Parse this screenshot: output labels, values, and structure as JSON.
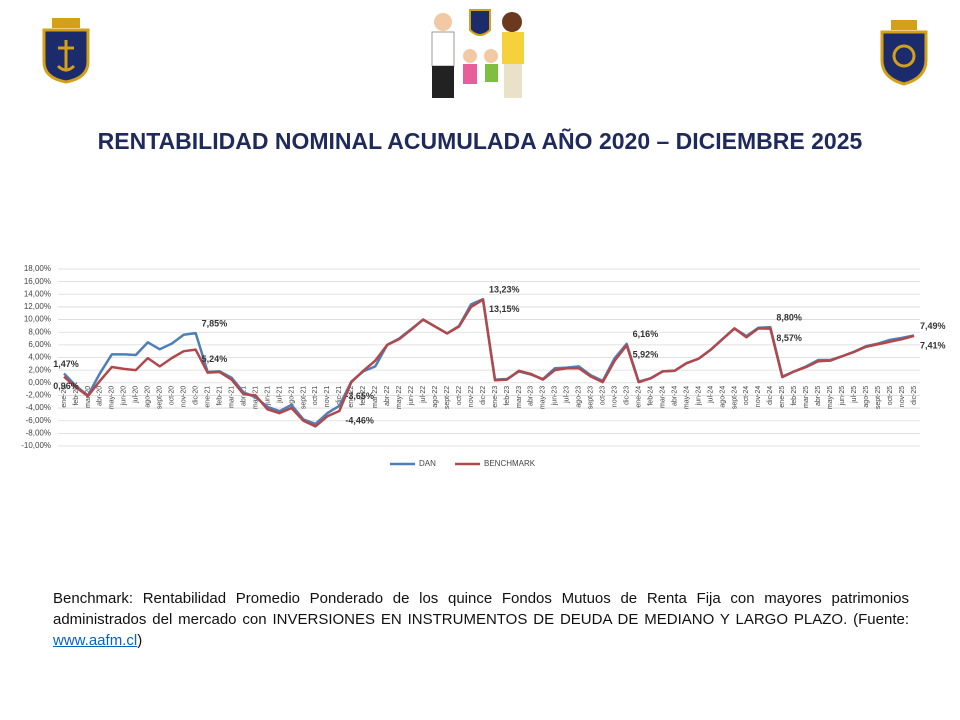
{
  "header": {
    "title": "RENTABILIDAD NOMINAL ACUMULADA AÑO 2020 – DICIEMBRE 2025"
  },
  "chart_data": {
    "type": "line",
    "categories": [
      "ene-20",
      "feb-20",
      "mar-20",
      "abr-20",
      "may-20",
      "jun-20",
      "jul-20",
      "ago-20",
      "sept-20",
      "oct-20",
      "nov-20",
      "dic-20",
      "ene-21",
      "feb-21",
      "mar-21",
      "abr-21",
      "may-21",
      "jun-21",
      "jul-21",
      "ago-21",
      "sept-21",
      "oct-21",
      "nov-21",
      "dic-21",
      "ene-22",
      "feb-22",
      "mar-22",
      "abr-22",
      "may-22",
      "jun-22",
      "jul-22",
      "ago-22",
      "sept-22",
      "oct-22",
      "nov-22",
      "dic-22",
      "ene-23",
      "feb-23",
      "mar-23",
      "abr-23",
      "may-23",
      "jun-23",
      "jul-23",
      "ago-23",
      "sept-23",
      "oct-23",
      "nov-23",
      "dic-23",
      "ene-24",
      "feb-24",
      "mar-24",
      "abr-24",
      "may-24",
      "jun-24",
      "jul-24",
      "ago-24",
      "sept-24",
      "oct-24",
      "nov-24",
      "dic-24",
      "ene-25",
      "feb-25",
      "mar-25",
      "abr-25",
      "may-25",
      "jun-25",
      "jul-25",
      "ago-25",
      "sept-25",
      "oct-25",
      "nov-25",
      "dic-25"
    ],
    "series": [
      {
        "name": "DAN",
        "color": "#4f7fb8",
        "values": [
          1.47,
          -0.5,
          -2.0,
          1.5,
          4.5,
          4.5,
          4.4,
          6.4,
          5.3,
          6.2,
          7.6,
          7.85,
          1.7,
          1.8,
          0.8,
          -1.5,
          -2.3,
          -3.8,
          -4.5,
          -3.5,
          -5.8,
          -6.5,
          -4.8,
          -3.65,
          0.2,
          1.8,
          2.6,
          6.0,
          7.0,
          8.5,
          10.0,
          8.9,
          7.8,
          9.0,
          12.4,
          13.23,
          0.5,
          0.6,
          1.8,
          1.3,
          0.6,
          2.3,
          2.4,
          2.6,
          1.2,
          0.3,
          3.9,
          6.16,
          0.2,
          0.7,
          1.8,
          1.9,
          3.1,
          3.8,
          5.2,
          6.9,
          8.6,
          7.4,
          8.7,
          8.8,
          1.0,
          1.8,
          2.6,
          3.6,
          3.6,
          4.2,
          4.9,
          5.8,
          6.2,
          6.8,
          7.1,
          7.49
        ],
        "value_labels": [
          "1,47%",
          null,
          null,
          null,
          null,
          null,
          null,
          null,
          null,
          null,
          null,
          "7,85%",
          null,
          null,
          null,
          null,
          null,
          null,
          null,
          null,
          null,
          null,
          null,
          "-3,65%",
          null,
          null,
          null,
          null,
          null,
          null,
          null,
          null,
          null,
          null,
          null,
          "13,23%",
          null,
          null,
          null,
          null,
          null,
          null,
          null,
          null,
          null,
          null,
          null,
          "6,16%",
          null,
          null,
          null,
          null,
          null,
          null,
          null,
          null,
          null,
          null,
          null,
          "8,80%",
          null,
          null,
          null,
          null,
          null,
          null,
          null,
          null,
          null,
          null,
          null,
          "7,49%"
        ]
      },
      {
        "name": "BENCHMARK",
        "color": "#b0484c",
        "values": [
          0.96,
          -0.7,
          -2.1,
          0.3,
          2.5,
          2.2,
          2.0,
          3.9,
          2.6,
          3.9,
          5.0,
          5.24,
          1.6,
          1.7,
          0.5,
          -1.8,
          -2.0,
          -4.2,
          -4.8,
          -4.0,
          -6.0,
          -6.9,
          -5.3,
          -4.46,
          0.1,
          1.9,
          3.5,
          6.0,
          6.9,
          8.4,
          10.0,
          8.9,
          7.8,
          8.9,
          12.0,
          13.15,
          0.4,
          0.5,
          1.9,
          1.4,
          0.5,
          2.0,
          2.3,
          2.3,
          1.0,
          0.1,
          3.5,
          5.92,
          0.1,
          0.7,
          1.8,
          1.9,
          3.1,
          3.8,
          5.2,
          6.9,
          8.6,
          7.2,
          8.6,
          8.57,
          0.9,
          1.8,
          2.5,
          3.4,
          3.5,
          4.2,
          4.9,
          5.7,
          6.1,
          6.5,
          6.9,
          7.41
        ],
        "value_labels": [
          "0,96%",
          null,
          null,
          null,
          null,
          null,
          null,
          null,
          null,
          null,
          null,
          "5,24%",
          null,
          null,
          null,
          null,
          null,
          null,
          null,
          null,
          null,
          null,
          null,
          "-4,46%",
          null,
          null,
          null,
          null,
          null,
          null,
          null,
          null,
          null,
          null,
          null,
          "13,15%",
          null,
          null,
          null,
          null,
          null,
          null,
          null,
          null,
          null,
          null,
          null,
          "5,92%",
          null,
          null,
          null,
          null,
          null,
          null,
          null,
          null,
          null,
          null,
          null,
          "8,57%",
          null,
          null,
          null,
          null,
          null,
          null,
          null,
          null,
          null,
          null,
          null,
          "7,41%"
        ]
      }
    ],
    "ylim": [
      -10,
      18
    ],
    "yticks": [
      {
        "value": 18,
        "label": "18,00%"
      },
      {
        "value": 16,
        "label": "16,00%"
      },
      {
        "value": 14,
        "label": "14,00%"
      },
      {
        "value": 12,
        "label": "12,00%"
      },
      {
        "value": 10,
        "label": "10,00%"
      },
      {
        "value": 8,
        "label": "8,00%"
      },
      {
        "value": 6,
        "label": "6,00%"
      },
      {
        "value": 4,
        "label": "4,00%"
      },
      {
        "value": 2,
        "label": "2,00%"
      },
      {
        "value": 0,
        "label": "0,00%"
      },
      {
        "value": -2,
        "label": "-2,00%"
      },
      {
        "value": -4,
        "label": "-4,00%"
      },
      {
        "value": -6,
        "label": "-6,00%"
      },
      {
        "value": -8,
        "label": "-8,00%"
      },
      {
        "value": -10,
        "label": "-10,00%"
      }
    ],
    "grid": true,
    "legend": "bottom"
  },
  "footnote": {
    "text_before": "Benchmark:  Rentabilidad Promedio Ponderado de los quince Fondos Mutuos de Renta Fija con mayores patrimonios administrados del mercado con INVERSIONES EN INSTRUMENTOS DE DEUDA DE MEDIANO Y LARGO PLAZO. (Fuente: ",
    "link": "www.aafm.cl",
    "text_after": ")"
  }
}
